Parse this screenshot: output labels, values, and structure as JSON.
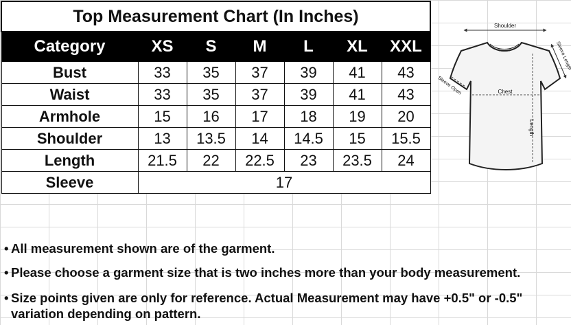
{
  "table": {
    "title": "Top Measurement Chart (In Inches)",
    "header": {
      "category": "Category",
      "sizes": [
        "XS",
        "S",
        "M",
        "L",
        "XL",
        "XXL"
      ]
    },
    "rows": [
      {
        "label": "Bust",
        "values": [
          "33",
          "35",
          "37",
          "39",
          "41",
          "43"
        ]
      },
      {
        "label": "Waist",
        "values": [
          "33",
          "35",
          "37",
          "39",
          "41",
          "43"
        ]
      },
      {
        "label": "Armhole",
        "values": [
          "15",
          "16",
          "17",
          "18",
          "19",
          "20"
        ]
      },
      {
        "label": "Shoulder",
        "values": [
          "13",
          "13.5",
          "14",
          "14.5",
          "15",
          "15.5"
        ]
      },
      {
        "label": "Length",
        "values": [
          "21.5",
          "22",
          "22.5",
          "23",
          "23.5",
          "24"
        ]
      }
    ],
    "sleeve": {
      "label": "Sleeve",
      "value": "17"
    }
  },
  "figure": {
    "labels": {
      "shoulder": "Shoulder",
      "sleeve_length": "Sleeve Length",
      "sleeve_open": "Sleeve Open",
      "chest": "Chest",
      "length": "Length"
    }
  },
  "notes": {
    "bullet": "•",
    "line1": "All measurement shown are of the garment.",
    "line2": "Please choose a garment size that is two inches more than your body measurement.",
    "line3a": "Size points given are only for reference. Actual Measurement may have +0.5\" or -0.5\"",
    "line3b": "variation depending on pattern."
  },
  "colors": {
    "header_bg": "#000000",
    "header_text": "#ffffff",
    "grid": "#d9d9d9",
    "guide": "#555555"
  }
}
